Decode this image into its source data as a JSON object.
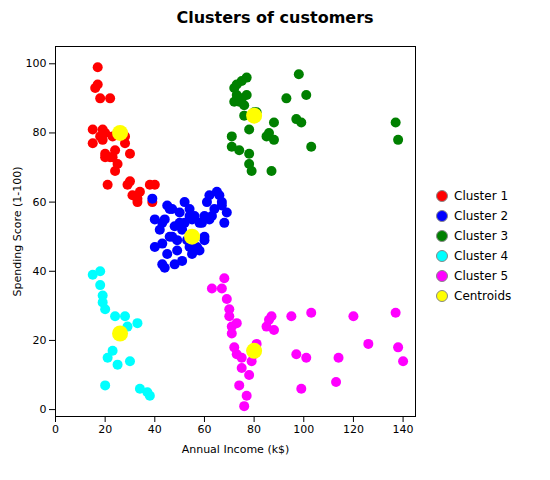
{
  "chart_data": {
    "type": "scatter",
    "title": "Clusters of customers",
    "x_label": "Annual Income (k$)",
    "y_label": "Spending Score (1-100)",
    "xlim": [
      0,
      145
    ],
    "ylim": [
      -2,
      105
    ],
    "xticks": [
      0,
      20,
      40,
      60,
      80,
      100,
      120,
      140
    ],
    "yticks": [
      0,
      20,
      40,
      60,
      80,
      100
    ],
    "grid": false,
    "legend": "right",
    "series": [
      {
        "name": "Cluster 1",
        "color": "red",
        "x": [
          15,
          15,
          16,
          17,
          17,
          18,
          18,
          19,
          19,
          20,
          20,
          20,
          21,
          22,
          22,
          23,
          23,
          24,
          24,
          25,
          27,
          28,
          28,
          29,
          30,
          30,
          31,
          33,
          33,
          34,
          38,
          39,
          40
        ],
        "values": [
          81,
          77,
          93,
          99,
          94,
          90,
          79,
          78,
          81,
          80,
          73,
          74,
          65,
          90,
          73,
          73,
          79,
          69,
          75,
          71,
          80,
          77,
          79,
          65,
          66,
          74,
          62,
          61,
          60,
          63,
          65,
          60,
          65
        ]
      },
      {
        "name": "Cluster 2",
        "color": "blue",
        "x": [
          39,
          40,
          40,
          42,
          43,
          43,
          43,
          44,
          44,
          45,
          45,
          46,
          46,
          47,
          47,
          48,
          48,
          49,
          49,
          50,
          50,
          51,
          51,
          52,
          52,
          53,
          54,
          54,
          54,
          55,
          55,
          56,
          57,
          58,
          58,
          59,
          60,
          60,
          60,
          61,
          62,
          62,
          63,
          64,
          65,
          66,
          67,
          67,
          68,
          69
        ],
        "values": [
          61,
          55,
          47,
          52,
          54,
          48,
          42,
          55,
          41,
          45,
          59,
          58,
          50,
          58,
          50,
          53,
          42,
          46,
          49,
          57,
          54,
          52,
          43,
          60,
          54,
          49,
          58,
          47,
          56,
          45,
          55,
          56,
          47,
          46,
          54,
          54,
          49,
          56,
          50,
          60,
          55,
          62,
          56,
          58,
          63,
          62,
          59,
          60,
          54,
          57
        ]
      },
      {
        "name": "Cluster 3",
        "color": "green",
        "x": [
          71,
          71,
          72,
          72,
          73,
          73,
          74,
          74,
          75,
          75,
          76,
          76,
          77,
          77,
          78,
          78,
          78,
          79,
          80,
          81,
          85,
          86,
          87,
          88,
          88,
          93,
          97,
          98,
          99,
          101,
          103,
          137,
          138
        ],
        "values": [
          79,
          76,
          93,
          89,
          91,
          94,
          89,
          75,
          90,
          95,
          85,
          88,
          91,
          96,
          74,
          81,
          71,
          69,
          86,
          86,
          79,
          80,
          69,
          83,
          78,
          90,
          84,
          97,
          83,
          91,
          76,
          83,
          78
        ]
      },
      {
        "name": "Cluster 4",
        "color": "cyan",
        "x": [
          15,
          18,
          18,
          19,
          19,
          20,
          20,
          21,
          23,
          24,
          25,
          28,
          29,
          30,
          33,
          34,
          37,
          38
        ],
        "values": [
          39,
          40,
          36,
          33,
          31,
          29,
          7,
          15,
          17,
          27,
          13,
          27,
          24,
          14,
          25,
          6,
          5,
          4
        ]
      },
      {
        "name": "Cluster 5",
        "color": "magenta",
        "x": [
          63,
          67,
          68,
          69,
          70,
          70,
          71,
          71,
          72,
          73,
          73,
          74,
          75,
          75,
          76,
          77,
          78,
          79,
          79,
          80,
          81,
          85,
          86,
          87,
          88,
          95,
          97,
          99,
          101,
          103,
          113,
          114,
          120,
          126,
          137,
          138,
          140
        ],
        "values": [
          35,
          35,
          38,
          32,
          29,
          27,
          24,
          22,
          18,
          25,
          16,
          7,
          12,
          15,
          1,
          4,
          10,
          17,
          14,
          16,
          19,
          24,
          26,
          27,
          23,
          27,
          16,
          6,
          15,
          28,
          8,
          15,
          27,
          19,
          28,
          18,
          14
        ]
      },
      {
        "name": "Centroids",
        "color": "yellow",
        "x": [
          26,
          55,
          80,
          26,
          80
        ],
        "values": [
          80,
          50,
          85,
          22,
          17
        ]
      }
    ]
  }
}
